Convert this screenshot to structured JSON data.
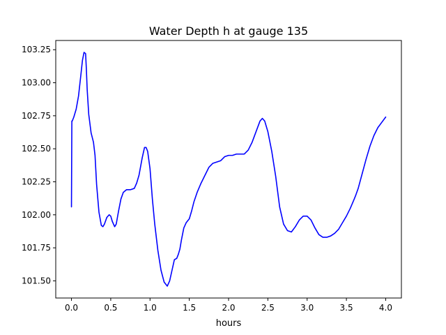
{
  "chart_data": {
    "type": "line",
    "title": "Water Depth h at gauge 135",
    "xlabel": "hours",
    "ylabel": "",
    "xlim": [
      -0.2,
      4.2
    ],
    "ylim": [
      101.37,
      103.32
    ],
    "x_ticks": [
      0.0,
      0.5,
      1.0,
      1.5,
      2.0,
      2.5,
      3.0,
      3.5,
      4.0
    ],
    "x_tick_labels": [
      "0.0",
      "0.5",
      "1.0",
      "1.5",
      "2.0",
      "2.5",
      "3.0",
      "3.5",
      "4.0"
    ],
    "y_ticks": [
      101.5,
      101.75,
      102.0,
      102.25,
      102.5,
      102.75,
      103.0,
      103.25
    ],
    "y_tick_labels": [
      "101.50",
      "101.75",
      "102.00",
      "102.25",
      "102.50",
      "102.75",
      "103.00",
      "103.25"
    ],
    "grid": false,
    "legend": "none",
    "series": [
      {
        "color": "#0000ff",
        "x": [
          0.0,
          0.005,
          0.01,
          0.03,
          0.06,
          0.09,
          0.12,
          0.14,
          0.16,
          0.18,
          0.19,
          0.2,
          0.22,
          0.25,
          0.28,
          0.3,
          0.32,
          0.35,
          0.38,
          0.4,
          0.42,
          0.45,
          0.48,
          0.5,
          0.52,
          0.55,
          0.57,
          0.6,
          0.63,
          0.66,
          0.7,
          0.75,
          0.8,
          0.83,
          0.86,
          0.9,
          0.93,
          0.95,
          0.97,
          1.0,
          1.03,
          1.06,
          1.1,
          1.14,
          1.18,
          1.22,
          1.25,
          1.28,
          1.31,
          1.34,
          1.36,
          1.38,
          1.4,
          1.43,
          1.46,
          1.5,
          1.53,
          1.56,
          1.6,
          1.65,
          1.7,
          1.75,
          1.8,
          1.85,
          1.9,
          1.95,
          2.0,
          2.05,
          2.1,
          2.15,
          2.2,
          2.25,
          2.3,
          2.35,
          2.4,
          2.43,
          2.46,
          2.5,
          2.55,
          2.6,
          2.65,
          2.7,
          2.75,
          2.8,
          2.85,
          2.9,
          2.95,
          3.0,
          3.05,
          3.1,
          3.15,
          3.2,
          3.25,
          3.3,
          3.35,
          3.4,
          3.45,
          3.5,
          3.55,
          3.6,
          3.62,
          3.65,
          3.7,
          3.75,
          3.8,
          3.85,
          3.9,
          3.95,
          4.0
        ],
        "y": [
          102.06,
          102.71,
          102.71,
          102.74,
          102.8,
          102.9,
          103.06,
          103.17,
          103.23,
          103.22,
          103.1,
          102.95,
          102.76,
          102.62,
          102.55,
          102.45,
          102.23,
          102.02,
          101.92,
          101.91,
          101.93,
          101.98,
          102.0,
          101.99,
          101.95,
          101.91,
          101.93,
          102.03,
          102.12,
          102.17,
          102.19,
          102.19,
          102.2,
          102.24,
          102.3,
          102.43,
          102.51,
          102.51,
          102.48,
          102.35,
          102.12,
          101.93,
          101.73,
          101.58,
          101.49,
          101.46,
          101.5,
          101.58,
          101.66,
          101.67,
          101.7,
          101.74,
          101.81,
          101.9,
          101.94,
          101.97,
          102.03,
          102.1,
          102.17,
          102.24,
          102.3,
          102.36,
          102.39,
          102.4,
          102.41,
          102.44,
          102.45,
          102.45,
          102.46,
          102.46,
          102.46,
          102.49,
          102.55,
          102.63,
          102.71,
          102.73,
          102.71,
          102.63,
          102.48,
          102.29,
          102.06,
          101.93,
          101.88,
          101.87,
          101.91,
          101.96,
          101.99,
          101.99,
          101.96,
          101.9,
          101.85,
          101.83,
          101.83,
          101.84,
          101.86,
          101.89,
          101.94,
          101.99,
          102.05,
          102.12,
          102.15,
          102.2,
          102.31,
          102.42,
          102.52,
          102.6,
          102.66,
          102.7,
          102.74
        ]
      }
    ]
  }
}
